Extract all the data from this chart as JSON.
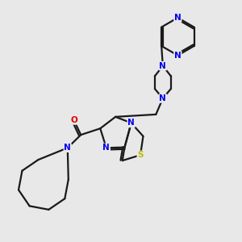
{
  "background_color": "#e8e8e8",
  "bond_color": "#1a1a1a",
  "nitrogen_color": "#0000ee",
  "oxygen_color": "#dd0000",
  "sulfur_color": "#bbbb00",
  "line_width": 1.6,
  "fig_width": 3.0,
  "fig_height": 3.0,
  "dpi": 100,
  "xlim": [
    0.5,
    9.0
  ],
  "ylim": [
    0.8,
    9.5
  ]
}
